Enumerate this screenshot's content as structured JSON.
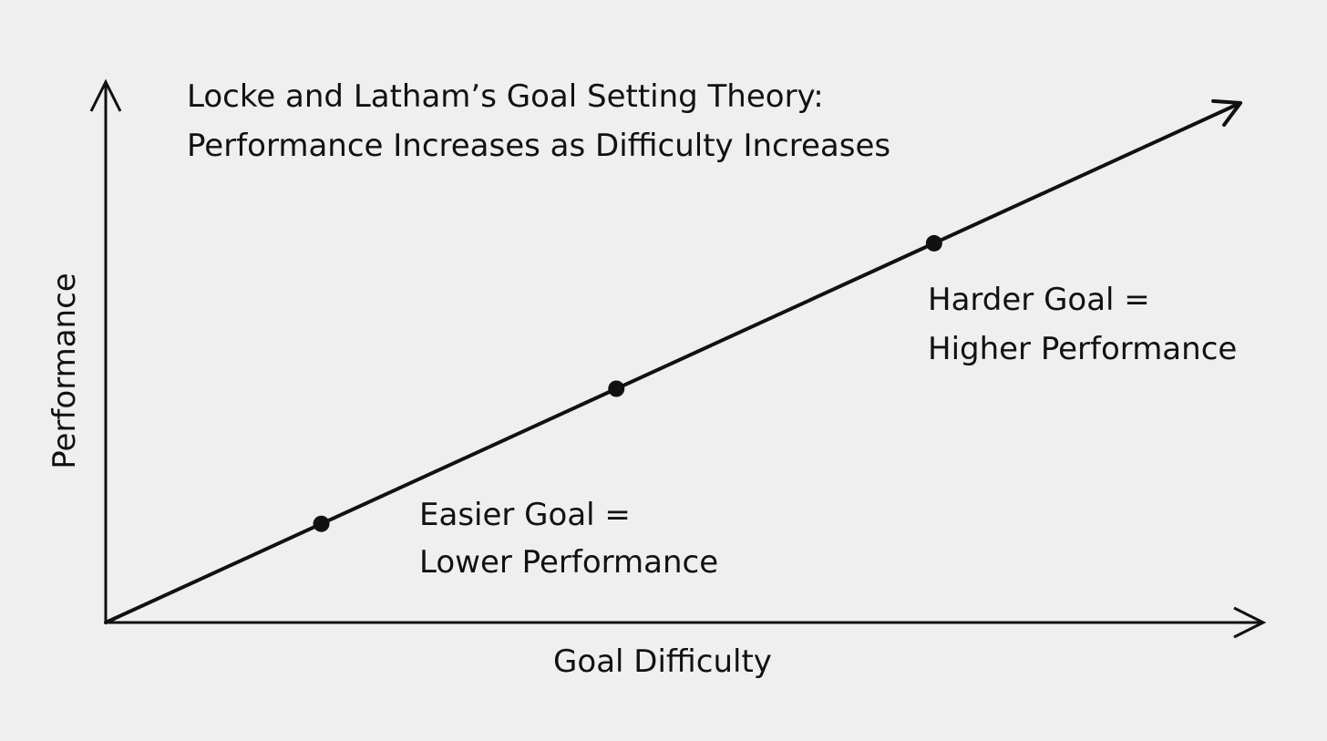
{
  "chart_data": {
    "type": "line",
    "title": [
      "Locke and Latham’s Goal Setting Theory:",
      "Performance Increases as Difficulty Increases"
    ],
    "xlabel": "Goal Difficulty",
    "ylabel": "Performance",
    "xlim": [
      0,
      10
    ],
    "ylim": [
      0,
      10
    ],
    "grid": false,
    "legend": "none",
    "line_color": "#111111",
    "background_color": "#efefef",
    "series": [
      {
        "x": [
          0,
          10
        ],
        "y": [
          0,
          10
        ]
      }
    ],
    "points": [
      {
        "x": 1.9,
        "y": 1.9
      },
      {
        "x": 4.5,
        "y": 4.5
      },
      {
        "x": 7.3,
        "y": 7.3
      }
    ],
    "annotations": [
      {
        "id": "easier",
        "lines": [
          "Easier Goal =",
          "Lower Performance"
        ],
        "near_point": 0
      },
      {
        "id": "harder",
        "lines": [
          "Harder Goal =",
          "Higher Performance"
        ],
        "near_point": 2
      }
    ]
  }
}
